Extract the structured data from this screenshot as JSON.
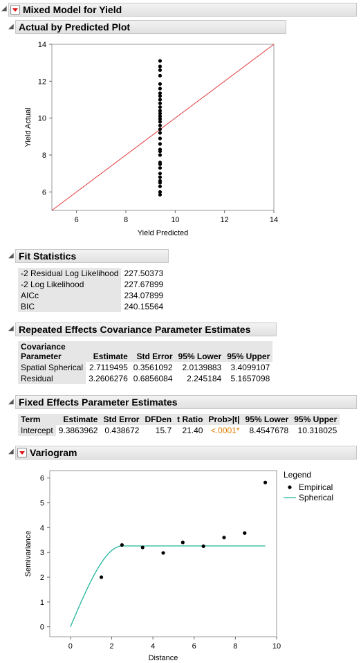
{
  "title": "Mixed Model for Yield",
  "actual_by_predicted": {
    "header": "Actual by Predicted Plot",
    "chart_data": {
      "type": "scatter",
      "xlabel": "Yield Predicted",
      "ylabel": "Yield Actual",
      "xlim": [
        5,
        14
      ],
      "ylim": [
        5,
        14
      ],
      "x_ticks": [
        "6",
        "8",
        "10",
        "12",
        "14"
      ],
      "y_ticks": [
        "6",
        "8",
        "10",
        "12",
        "14"
      ],
      "reference_line": "y = x",
      "reference_line_color": "#e0393b",
      "point_color": "#000000",
      "x_value": 9.386,
      "y_values": [
        5.85,
        6.0,
        6.3,
        6.5,
        6.6,
        6.8,
        7.0,
        7.3,
        7.5,
        7.6,
        8.0,
        8.2,
        8.3,
        8.6,
        8.9,
        9.2,
        9.4,
        9.6,
        9.8,
        9.95,
        10.1,
        10.25,
        10.4,
        10.6,
        10.8,
        11.0,
        11.2,
        11.35,
        11.6,
        11.85,
        12.3,
        12.6,
        12.8,
        13.1
      ]
    }
  },
  "fit_statistics": {
    "header": "Fit Statistics",
    "rows": [
      {
        "label": "-2 Residual Log Likelihood",
        "value": "227.50373"
      },
      {
        "label": "-2 Log Likelihood",
        "value": "227.67899"
      },
      {
        "label": "AICc",
        "value": "234.07899"
      },
      {
        "label": "BIC",
        "value": "240.15564"
      }
    ]
  },
  "covariance": {
    "header": "Repeated Effects Covariance Parameter Estimates",
    "columns": [
      "Covariance Parameter",
      "Estimate",
      "Std Error",
      "95% Lower",
      "95% Upper"
    ],
    "col0_line1": "Covariance",
    "col0_line2": "Parameter",
    "rows": [
      [
        "Spatial Spherical",
        "2.7119495",
        "0.3561092",
        "2.0139883",
        "3.4099107"
      ],
      [
        "Residual",
        "3.2606276",
        "0.6856084",
        "2.245184",
        "5.1657098"
      ]
    ]
  },
  "fixed_effects": {
    "header": "Fixed Effects Parameter Estimates",
    "columns": [
      "Term",
      "Estimate",
      "Std Error",
      "DFDen",
      "t Ratio",
      "Prob>|t|",
      "95% Lower",
      "95% Upper"
    ],
    "rows": [
      [
        "Intercept",
        "9.3863962",
        "0.438672",
        "15.7",
        "21.40",
        "<.0001*",
        "8.4547678",
        "10.318025"
      ]
    ],
    "significant_color": "#e07b00"
  },
  "variogram": {
    "header": "Variogram",
    "legend_title": "Legend",
    "legend_items": [
      "Empirical",
      "Spherical"
    ],
    "spherical_color": "#1fb59a",
    "chart_data": {
      "type": "scatter",
      "xlabel": "Distance",
      "ylabel": "Semivariance",
      "xlim": [
        -1,
        10
      ],
      "ylim": [
        -0.4,
        6.3
      ],
      "x_ticks": [
        "0",
        "2",
        "4",
        "6",
        "8",
        "10"
      ],
      "y_ticks": [
        "0",
        "1",
        "2",
        "3",
        "4",
        "5",
        "6"
      ],
      "series": [
        {
          "name": "Empirical",
          "x": [
            1.5,
            2.5,
            3.5,
            4.5,
            5.45,
            6.45,
            7.45,
            8.45,
            9.45
          ],
          "y": [
            2.0,
            3.3,
            3.2,
            2.98,
            3.4,
            3.25,
            3.6,
            3.78,
            5.82
          ]
        },
        {
          "name": "Spherical",
          "nugget": 0,
          "sill": 3.26,
          "range": 2.5,
          "x_max": 9.45
        }
      ]
    }
  }
}
